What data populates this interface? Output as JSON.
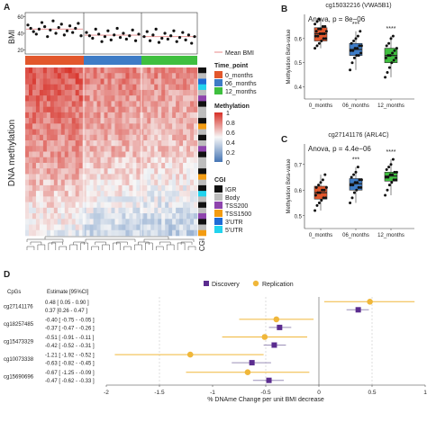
{
  "panel_labels": {
    "a": "A",
    "b": "B",
    "c": "C",
    "d": "D"
  },
  "panel_a": {
    "bmi_label": "BMI",
    "bmi_ticks": [
      "60",
      "40",
      "20"
    ],
    "side_label_dna": "DNA methylation",
    "side_label_cgi": "CGI",
    "legend": {
      "mean_bmi": "Mean BMI",
      "time_title": "Time_point",
      "time_items": [
        "0_months",
        "06_months",
        "12_months"
      ],
      "methylation_title": "Methylation",
      "methylation_ticks": [
        "1",
        "0.8",
        "0.6",
        "0.4",
        "0.2",
        "0"
      ],
      "cgi_title": "CGI",
      "cgi_items": [
        "IGR",
        "Body",
        "TSS200",
        "TSS1500",
        "3'UTR",
        "5'UTR"
      ]
    }
  },
  "panel_b": {
    "title": "cg15032216 (VWA5B1)",
    "annotation": "Anova, p = 8e−06",
    "ylabel": "Methylation Beta-value",
    "yticks": [
      "0.6",
      "0.5",
      "0.4"
    ],
    "categories": [
      "0_months",
      "06_months",
      "12_months"
    ],
    "sig": [
      "",
      "***",
      "****"
    ]
  },
  "panel_c": {
    "title": "cg27141176 (ARL4C)",
    "annotation": "Anova, p = 4.4e−06",
    "ylabel": "Methylation Beta-value",
    "yticks": [
      "0.7",
      "0.6",
      "0.5"
    ],
    "categories": [
      "0_months",
      "06_months",
      "12_months"
    ],
    "sig": [
      "",
      "***",
      "****"
    ]
  },
  "panel_d": {
    "col_cpg": "CpGs",
    "col_est": "Estimate [95%CI]",
    "legend_discovery": "Discovery",
    "legend_replication": "Replication",
    "xlabel": "% DNAme Change per unit BMI decrease",
    "xticks": [
      "-2",
      "-1.5",
      "-1",
      "-0.5",
      "0",
      "0.5",
      "1"
    ]
  },
  "colors": {
    "t0": "#e2572c",
    "t6": "#3e7cc6",
    "t12": "#3fbf3f",
    "discovery": "#5b2c8f",
    "replication": "#f0b73a",
    "heat_high": "#d73027",
    "heat_mid": "#f7f7f7",
    "heat_low": "#4575b4"
  },
  "chart_data": [
    {
      "type": "scatter",
      "panel": "A-top",
      "ylabel": "BMI",
      "ylim": [
        15,
        65
      ],
      "groups": [
        "0_months",
        "06_months",
        "12_months"
      ],
      "values": [
        [
          50,
          46,
          42,
          39,
          45,
          53,
          48,
          36,
          44,
          55,
          40,
          47,
          51,
          38,
          43,
          49,
          41,
          46,
          52,
          37
        ],
        [
          41,
          37,
          34,
          45,
          39,
          30,
          36,
          43,
          32,
          38,
          46,
          35,
          40,
          33,
          37,
          44,
          31,
          39
        ],
        [
          36,
          42,
          31,
          38,
          45,
          29,
          34,
          40,
          33,
          37,
          43,
          30,
          35,
          41,
          32,
          38,
          28,
          36
        ]
      ]
    },
    {
      "type": "heatmap",
      "panel": "A",
      "value_range": [
        0,
        1
      ],
      "groups": [
        "0_months",
        "06_months",
        "12_months"
      ],
      "cgi_categories": [
        "IGR",
        "Body",
        "TSS200",
        "TSS1500",
        "3'UTR",
        "5'UTR"
      ],
      "row_cgi": [
        0,
        1,
        4,
        5,
        1,
        2,
        0,
        1,
        1,
        0,
        3,
        1,
        0,
        1,
        2,
        0,
        1,
        1,
        0,
        3,
        1,
        0,
        5,
        1,
        0,
        1,
        2,
        0,
        1,
        3
      ]
    },
    {
      "type": "box",
      "panel": "B",
      "title": "cg15032216 (VWA5B1)",
      "ylabel": "Methylation Beta-value",
      "categories": [
        "0_months",
        "06_months",
        "12_months"
      ],
      "ylim": [
        0.35,
        0.7
      ],
      "boxes": [
        {
          "min": 0.56,
          "q1": 0.59,
          "median": 0.62,
          "q3": 0.645,
          "max": 0.68
        },
        {
          "min": 0.47,
          "q1": 0.53,
          "median": 0.555,
          "q3": 0.58,
          "max": 0.63
        },
        {
          "min": 0.44,
          "q1": 0.5,
          "median": 0.53,
          "q3": 0.56,
          "max": 0.61
        }
      ],
      "points": [
        [
          0.56,
          0.57,
          0.58,
          0.59,
          0.6,
          0.6,
          0.61,
          0.61,
          0.62,
          0.62,
          0.62,
          0.63,
          0.63,
          0.64,
          0.64,
          0.65,
          0.65,
          0.66,
          0.67,
          0.68
        ],
        [
          0.47,
          0.5,
          0.52,
          0.53,
          0.53,
          0.54,
          0.55,
          0.55,
          0.56,
          0.56,
          0.57,
          0.57,
          0.58,
          0.59,
          0.6,
          0.61,
          0.63
        ],
        [
          0.44,
          0.46,
          0.48,
          0.5,
          0.51,
          0.52,
          0.52,
          0.53,
          0.53,
          0.54,
          0.55,
          0.56,
          0.57,
          0.58,
          0.6,
          0.61
        ]
      ]
    },
    {
      "type": "box",
      "panel": "C",
      "title": "cg27141176 (ARL4C)",
      "ylabel": "Methylation Beta-value",
      "categories": [
        "0_months",
        "06_months",
        "12_months"
      ],
      "ylim": [
        0.45,
        0.78
      ],
      "boxes": [
        {
          "min": 0.52,
          "q1": 0.565,
          "median": 0.59,
          "q3": 0.615,
          "max": 0.66
        },
        {
          "min": 0.55,
          "q1": 0.6,
          "median": 0.625,
          "q3": 0.645,
          "max": 0.69
        },
        {
          "min": 0.58,
          "q1": 0.635,
          "median": 0.655,
          "q3": 0.67,
          "max": 0.72
        }
      ],
      "points": [
        [
          0.52,
          0.54,
          0.55,
          0.56,
          0.57,
          0.57,
          0.58,
          0.59,
          0.59,
          0.6,
          0.6,
          0.61,
          0.61,
          0.62,
          0.63,
          0.64,
          0.66
        ],
        [
          0.55,
          0.57,
          0.59,
          0.6,
          0.61,
          0.61,
          0.62,
          0.62,
          0.63,
          0.63,
          0.64,
          0.64,
          0.65,
          0.66,
          0.67,
          0.69
        ],
        [
          0.58,
          0.6,
          0.62,
          0.63,
          0.64,
          0.64,
          0.65,
          0.65,
          0.66,
          0.66,
          0.67,
          0.67,
          0.68,
          0.69,
          0.7,
          0.72
        ]
      ]
    },
    {
      "type": "forest",
      "panel": "D",
      "xlabel": "% DNAme Change per unit BMI decrease",
      "xlim": [
        -2,
        1
      ],
      "series_names": [
        "Discovery",
        "Replication"
      ],
      "rows": [
        {
          "cpg": "cg27141176",
          "replication": {
            "est": 0.48,
            "lo": 0.05,
            "hi": 0.9,
            "label": "0.48 [ 0.05 - 0.90 ]"
          },
          "discovery": {
            "est": 0.37,
            "lo": 0.26,
            "hi": 0.47,
            "label": "0.37 [0.26 - 0.47 ]"
          }
        },
        {
          "cpg": "cg18257485",
          "replication": {
            "est": -0.4,
            "lo": -0.75,
            "hi": -0.05,
            "label": "-0.40 [ -0.75 - -0.05 ]"
          },
          "discovery": {
            "est": -0.37,
            "lo": -0.47,
            "hi": -0.26,
            "label": "-0.37 [ -0.47 - -0.26 ]"
          }
        },
        {
          "cpg": "cg15473329",
          "replication": {
            "est": -0.51,
            "lo": -0.91,
            "hi": -0.11,
            "label": "-0.51 [ -0.91 - -0.11 ]"
          },
          "discovery": {
            "est": -0.42,
            "lo": -0.52,
            "hi": -0.31,
            "label": "-0.42 [ -0.52 - -0.31 ]"
          }
        },
        {
          "cpg": "cg10073338",
          "replication": {
            "est": -1.21,
            "lo": -1.92,
            "hi": -0.52,
            "label": "-1.21 [ -1.92 - -0.52 ]"
          },
          "discovery": {
            "est": -0.63,
            "lo": -0.82,
            "hi": -0.45,
            "label": "-0.63 [ -0.82 - -0.45 ]"
          }
        },
        {
          "cpg": "cg15690696",
          "replication": {
            "est": -0.67,
            "lo": -1.25,
            "hi": -0.09,
            "label": "-0.67 [ -1.25 - -0.09 ]"
          },
          "discovery": {
            "est": -0.47,
            "lo": -0.62,
            "hi": -0.33,
            "label": "-0.47 [ -0.62 - -0.33 ]"
          }
        }
      ]
    }
  ]
}
